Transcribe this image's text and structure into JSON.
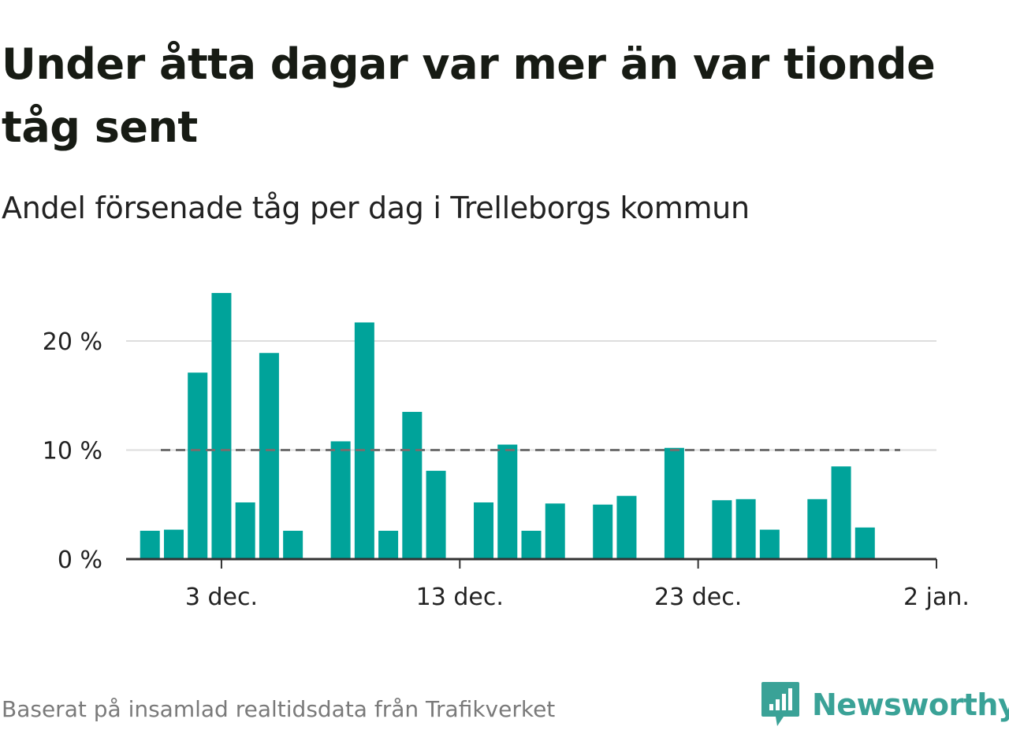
{
  "title": "Under åtta dagar var mer än var tionde tåg sent",
  "subtitle": "Andel försenade tåg per dag i Trelleborgs kommun",
  "source": "Baserat på insamlad realtidsdata från Trafikverket",
  "brand": {
    "name": "Newsworthy",
    "icon": "newsworthy-logo-icon",
    "color": "#3aa297"
  },
  "colors": {
    "bar": "#00a39a",
    "reference_line": "#707070",
    "grid": "#dddddd",
    "axis": "#333333"
  },
  "chart_data": {
    "type": "bar",
    "x_start": "2023-11-29",
    "x_end": "2024-01-02",
    "xticks": [
      {
        "date": "2023-12-03",
        "label": "3 dec."
      },
      {
        "date": "2023-12-13",
        "label": "13 dec."
      },
      {
        "date": "2023-12-23",
        "label": "23 dec."
      },
      {
        "date": "2024-01-02",
        "label": "2 jan."
      }
    ],
    "yticks": [
      {
        "value": 0,
        "label": "0 %"
      },
      {
        "value": 10,
        "label": "10 %"
      },
      {
        "value": 20,
        "label": "20 %"
      }
    ],
    "ylim": [
      0,
      26
    ],
    "reference_line": {
      "value": 10,
      "style": "dashed"
    },
    "grid": true,
    "series": [
      {
        "points": [
          {
            "date": "2023-11-30",
            "value": 2.6
          },
          {
            "date": "2023-12-01",
            "value": 2.7
          },
          {
            "date": "2023-12-02",
            "value": 17.1
          },
          {
            "date": "2023-12-03",
            "value": 24.4
          },
          {
            "date": "2023-12-04",
            "value": 5.2
          },
          {
            "date": "2023-12-05",
            "value": 18.9
          },
          {
            "date": "2023-12-06",
            "value": 2.6
          },
          {
            "date": "2023-12-08",
            "value": 10.8
          },
          {
            "date": "2023-12-09",
            "value": 21.7
          },
          {
            "date": "2023-12-10",
            "value": 2.6
          },
          {
            "date": "2023-12-11",
            "value": 13.5
          },
          {
            "date": "2023-12-12",
            "value": 8.1
          },
          {
            "date": "2023-12-14",
            "value": 5.2
          },
          {
            "date": "2023-12-15",
            "value": 10.5
          },
          {
            "date": "2023-12-16",
            "value": 2.6
          },
          {
            "date": "2023-12-17",
            "value": 5.1
          },
          {
            "date": "2023-12-19",
            "value": 5.0
          },
          {
            "date": "2023-12-20",
            "value": 5.8
          },
          {
            "date": "2023-12-22",
            "value": 10.2
          },
          {
            "date": "2023-12-24",
            "value": 5.4
          },
          {
            "date": "2023-12-25",
            "value": 5.5
          },
          {
            "date": "2023-12-26",
            "value": 2.7
          },
          {
            "date": "2023-12-28",
            "value": 5.5
          },
          {
            "date": "2023-12-29",
            "value": 8.5
          },
          {
            "date": "2023-12-30",
            "value": 2.9
          }
        ]
      }
    ]
  }
}
